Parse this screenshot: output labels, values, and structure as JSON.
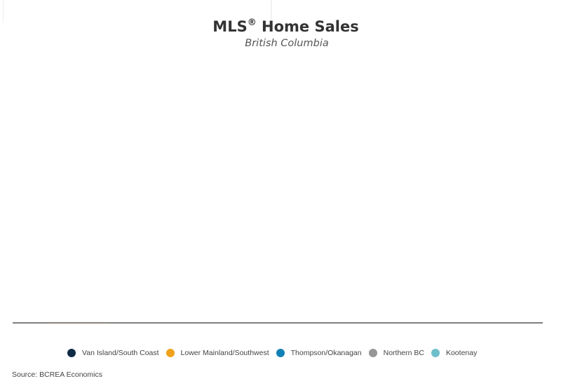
{
  "chart_data": {
    "type": "bar",
    "title": "MLS",
    "title_mark": "®",
    "title_rest": " Home Sales",
    "subtitle": "British Columbia",
    "categories": [],
    "series": [
      {
        "name": "Van Island/South Coast",
        "color": "#0f2a44",
        "values": []
      },
      {
        "name": "Lower Mainland/Southwest",
        "color": "#f0a21c",
        "values": []
      },
      {
        "name": "Thompson/Okanagan",
        "color": "#1180b4",
        "values": []
      },
      {
        "name": "Northern BC",
        "color": "#969696",
        "values": []
      },
      {
        "name": "Kootenay",
        "color": "#6dbfc9",
        "values": []
      }
    ],
    "xlabel": "",
    "ylabel": "",
    "grid": false,
    "legend_position": "bottom",
    "source": "Source: BCREA Economics"
  }
}
